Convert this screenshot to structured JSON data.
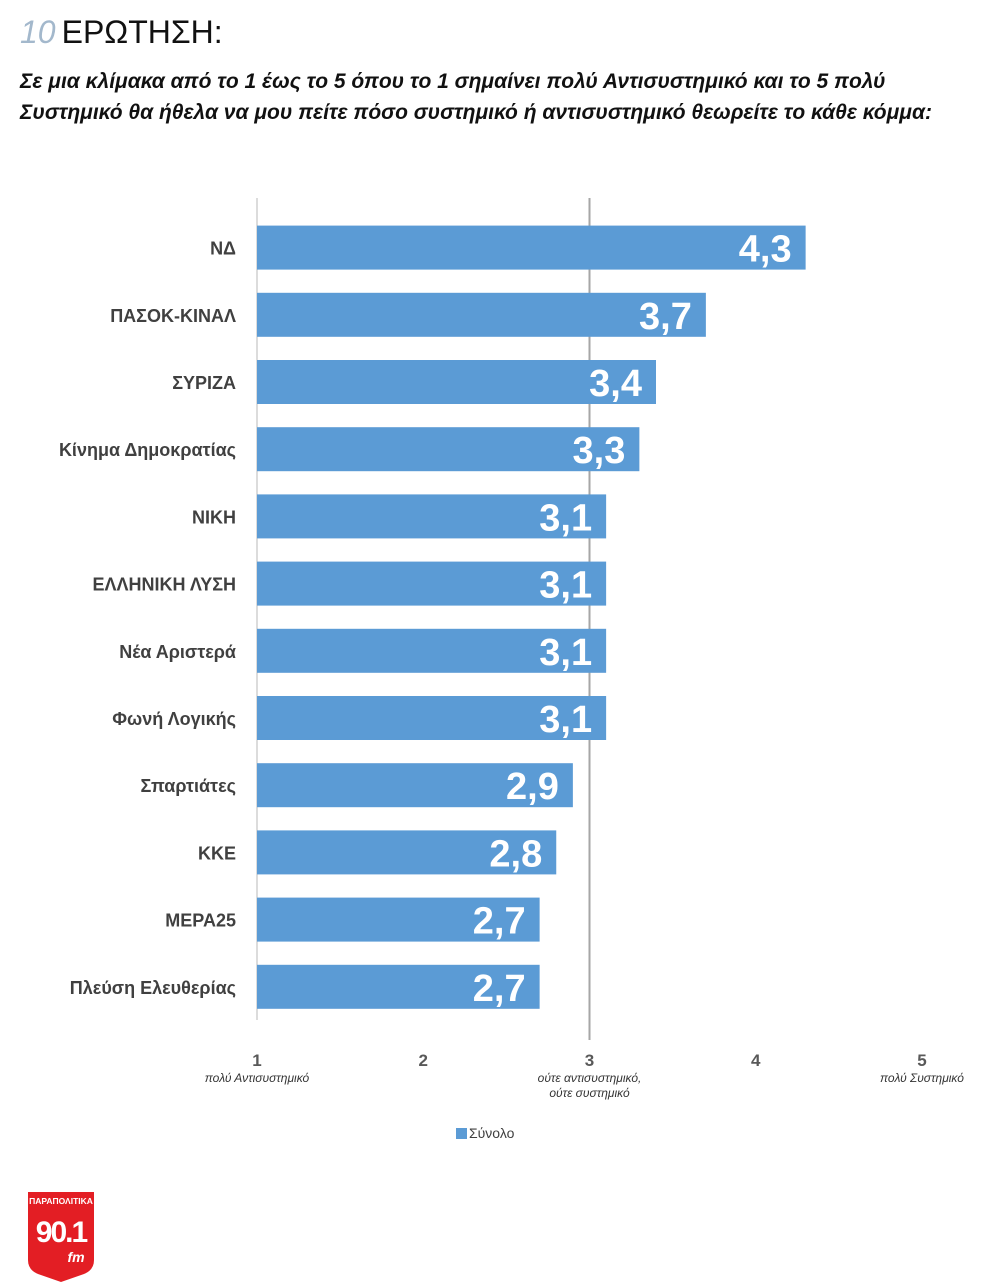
{
  "header": {
    "number": "10",
    "label": "ΕΡΩΤΗΣΗ:",
    "question": "Σε μια κλίμακα από το 1 έως το 5 όπου το 1 σημαίνει πολύ Αντισυστημικό και το 5 πολύ Συστημικό θα ήθελα να μου πείτε πόσο συστημικό ή αντισυστημικό θεωρείτε το κάθε κόμμα:"
  },
  "chart_data": {
    "type": "bar",
    "orientation": "horizontal",
    "categories": [
      "ΝΔ",
      "ΠΑΣΟΚ-ΚΙΝΑΛ",
      "ΣΥΡΙΖΑ",
      "Κίνημα Δημοκρατίας",
      "ΝΙΚΗ",
      "ΕΛΛΗΝΙΚΗ ΛΥΣΗ",
      "Νέα Αριστερά",
      "Φωνή Λογικής",
      "Σπαρτιάτες",
      "ΚΚΕ",
      "ΜΕΡΑ25",
      "Πλεύση Ελευθερίας"
    ],
    "series": [
      {
        "name": "Σύνολο",
        "values": [
          4.3,
          3.7,
          3.4,
          3.3,
          3.1,
          3.1,
          3.1,
          3.1,
          2.9,
          2.8,
          2.7,
          2.7
        ]
      }
    ],
    "data_labels": [
      "4,3",
      "3,7",
      "3,4",
      "3,3",
      "3,1",
      "3,1",
      "3,1",
      "3,1",
      "2,9",
      "2,8",
      "2,7",
      "2,7"
    ],
    "xlim": [
      1,
      5
    ],
    "x_ticks": [
      "1",
      "2",
      "3",
      "4",
      "5"
    ],
    "x_tick_sublabels": [
      [
        "πολύ Αντισυστημικό"
      ],
      [],
      [
        "ούτε αντισυστημικό,",
        "ούτε συστημικό"
      ],
      [],
      [
        "πολύ Συστημικό"
      ]
    ],
    "reference_line": 3,
    "legend_position": "bottom",
    "bar_color": "#5b9bd5",
    "label_color": "#ffffff"
  },
  "logo": {
    "brand": "ΠΑΡΑΠΟΛΙΤΙΚΑ",
    "frequency": "90.1",
    "band": "fm",
    "color": "#e31e24"
  }
}
